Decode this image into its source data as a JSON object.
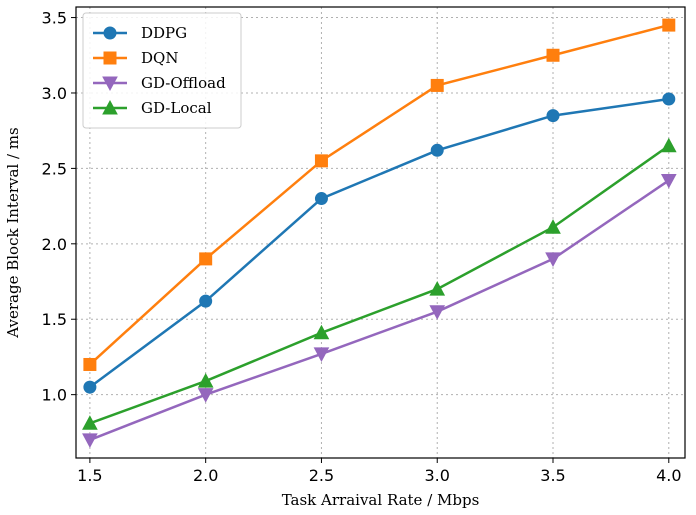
{
  "chart_data": {
    "type": "line",
    "title": "",
    "xlabel": "Task Arraival Rate / Mbps",
    "ylabel": "Average Block Interval / ms",
    "x": [
      1.5,
      2.0,
      2.5,
      3.0,
      3.5,
      4.0
    ],
    "xticks": [
      "1.5",
      "2.0",
      "2.5",
      "3.0",
      "3.5",
      "4.0"
    ],
    "yticks": [
      "1.0",
      "1.5",
      "2.0",
      "2.5",
      "3.0",
      "3.5"
    ],
    "xlim": [
      1.44,
      4.07
    ],
    "ylim": [
      0.58,
      3.57
    ],
    "grid": true,
    "legend_position": "top-left",
    "series": [
      {
        "name": "DDPG",
        "marker": "circle",
        "color": "#1f77b4",
        "values": [
          1.05,
          1.62,
          2.3,
          2.62,
          2.85,
          2.96
        ]
      },
      {
        "name": "DQN",
        "marker": "square",
        "color": "#ff7f0e",
        "values": [
          1.2,
          1.9,
          2.55,
          3.05,
          3.25,
          3.45
        ]
      },
      {
        "name": "GD-Offload",
        "marker": "triangle-down",
        "color": "#9467bd",
        "values": [
          0.7,
          1.0,
          1.27,
          1.55,
          1.9,
          2.42
        ]
      },
      {
        "name": "GD-Local",
        "marker": "triangle-up",
        "color": "#2ca02c",
        "values": [
          0.81,
          1.09,
          1.41,
          1.7,
          2.11,
          2.65
        ]
      }
    ]
  }
}
